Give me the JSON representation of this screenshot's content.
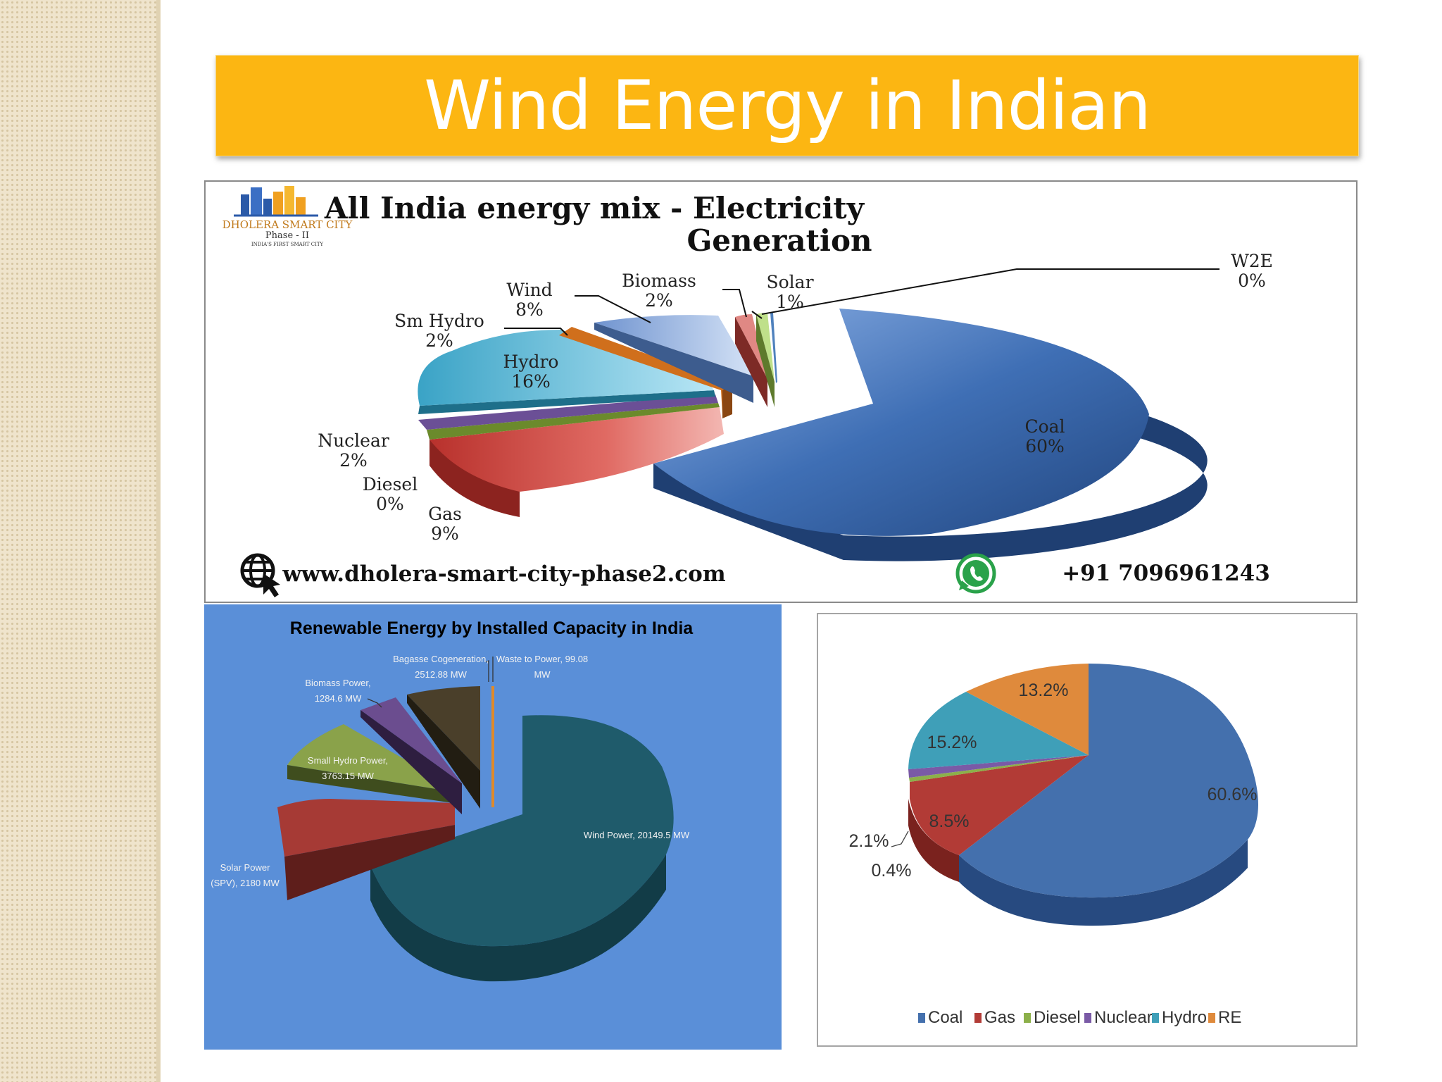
{
  "slide": {
    "title": "Wind Energy in  Indian"
  },
  "top_panel": {
    "logo": {
      "line1": "DHOLERA SMART CITY",
      "line2": "Phase - II",
      "line3": "INDIA'S FIRST SMART CITY"
    },
    "website": "www.dholera-smart-city-phase2.com",
    "phone": "+91 7096961243",
    "colors": {
      "coal": "#3f6fb5",
      "gas": "#c0403d",
      "diesel": "#7c9a3a",
      "nuclear": "#6b4f96",
      "hydro": "#3ea7c8",
      "sm_hydro": "#e07a1f",
      "wind": "#6f93cf",
      "biomass": "#c0504d",
      "solar": "#9bbb59",
      "w2e": "#4f81bd"
    }
  },
  "chart_data": [
    {
      "type": "pie",
      "title": "All India energy mix - Electricity Generation",
      "slices": [
        {
          "name": "Coal",
          "value": 60,
          "label": "60%"
        },
        {
          "name": "Gas",
          "value": 9,
          "label": "9%"
        },
        {
          "name": "Diesel",
          "value": 0,
          "label": "0%"
        },
        {
          "name": "Nuclear",
          "value": 2,
          "label": "2%"
        },
        {
          "name": "Hydro",
          "value": 16,
          "label": "16%"
        },
        {
          "name": "Sm Hydro",
          "value": 2,
          "label": "2%"
        },
        {
          "name": "Wind",
          "value": 8,
          "label": "8%"
        },
        {
          "name": "Biomass",
          "value": 2,
          "label": "2%"
        },
        {
          "name": "Solar",
          "value": 1,
          "label": "1%"
        },
        {
          "name": "W2E",
          "value": 0,
          "label": "0%"
        }
      ]
    },
    {
      "type": "pie",
      "title": "Renewable Energy by Installed Capacity in India",
      "unit": "MW",
      "slices": [
        {
          "name": "Wind Power",
          "value": 20149.5,
          "label": "Wind Power, 20149.5 MW",
          "color": "#1f5b6b"
        },
        {
          "name": "Solar Power (SPV)",
          "value": 2180,
          "label": "Solar Power (SPV), 2180 MW",
          "color": "#a63a35"
        },
        {
          "name": "Small Hydro Power",
          "value": 3763.15,
          "label": "Small Hydro Power, 3763.15 MW",
          "color": "#8aa24a"
        },
        {
          "name": "Biomass Power",
          "value": 1284.6,
          "label": "Biomass Power, 1284.6 MW",
          "color": "#6b4d8f"
        },
        {
          "name": "Bagasse Cogeneration",
          "value": 2512.88,
          "label": "Bagasse Cogeneration, 2512.88 MW",
          "color": "#4a3f2a"
        },
        {
          "name": "Waste to Power",
          "value": 99.08,
          "label": "Waste to Power, 99.08 MW",
          "color": "#e08a2a"
        }
      ]
    },
    {
      "type": "pie",
      "title": "",
      "legend_position": "bottom",
      "slices": [
        {
          "name": "Coal",
          "value": 60.6,
          "label": "60.6%",
          "color": "#4470ad"
        },
        {
          "name": "Gas",
          "value": 8.5,
          "label": "8.5%",
          "color": "#b23b36"
        },
        {
          "name": "Diesel",
          "value": 0.4,
          "label": "0.4%",
          "color": "#8cb04a"
        },
        {
          "name": "Nuclear",
          "value": 2.1,
          "label": "2.1%",
          "color": "#7a5aa6"
        },
        {
          "name": "Hydro",
          "value": 15.2,
          "label": "15.2%",
          "color": "#3f9fb8"
        },
        {
          "name": "RE",
          "value": 13.2,
          "label": "13.2%",
          "color": "#df8a3c"
        }
      ]
    }
  ]
}
